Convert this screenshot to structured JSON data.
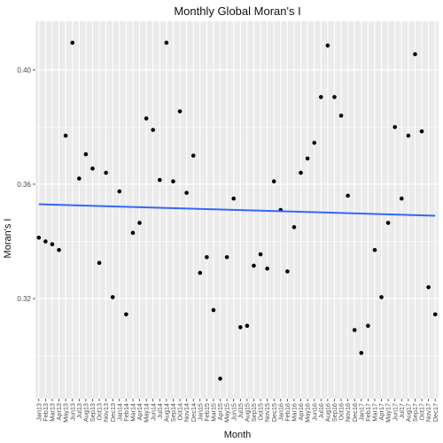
{
  "chart_data": {
    "type": "scatter",
    "title": "Monthly Global Moran's I",
    "xlabel": "Month",
    "ylabel": "Moran's I",
    "categories": [
      "Jan13",
      "Feb13",
      "Mar13",
      "Apr13",
      "May13",
      "Jun13",
      "Jul13",
      "Aug13",
      "Sep13",
      "Oct13",
      "Nov13",
      "Dec13",
      "Jan14",
      "Feb14",
      "Mar14",
      "Apr14",
      "May14",
      "Jun14",
      "Jul14",
      "Aug14",
      "Sep14",
      "Oct14",
      "Nov14",
      "Dec14",
      "Jan15",
      "Feb15",
      "Mar15",
      "Apr15",
      "May15",
      "Jun15",
      "Jul15",
      "Aug15",
      "Sep15",
      "Oct15",
      "Nov15",
      "Dec15",
      "Jan16",
      "Feb16",
      "Mar16",
      "Apr16",
      "May16",
      "Jun16",
      "Jul16",
      "Aug16",
      "Sep16",
      "Oct16",
      "Nov16",
      "Dec16",
      "Jan17",
      "Feb17",
      "Mar17",
      "Apr17",
      "May17",
      "Jun17",
      "Jul17",
      "Aug17",
      "Sep17",
      "Oct17",
      "Nov17",
      "Dec17"
    ],
    "values": [
      0.3413,
      0.34,
      0.339,
      0.337,
      0.377,
      0.4095,
      0.362,
      0.3705,
      0.3655,
      0.3325,
      0.364,
      0.3205,
      0.3575,
      0.3145,
      0.343,
      0.3465,
      0.383,
      0.379,
      0.3615,
      0.4095,
      0.361,
      0.3855,
      0.357,
      0.37,
      0.329,
      0.3345,
      0.316,
      0.292,
      0.3345,
      0.355,
      0.31,
      0.3105,
      0.3315,
      0.3355,
      0.3305,
      0.361,
      0.351,
      0.3295,
      0.345,
      0.364,
      0.369,
      0.3745,
      0.3905,
      0.4085,
      0.3905,
      0.384,
      0.356,
      0.309,
      0.301,
      0.3105,
      0.337,
      0.3205,
      0.3465,
      0.38,
      0.355,
      0.377,
      0.4055,
      0.3785,
      0.324,
      0.3145
    ],
    "trend_line": {
      "start": 0.353,
      "end": 0.349,
      "color": "#3366ff"
    },
    "y_ticks": [
      "0.32",
      "0.36",
      "0.40"
    ],
    "ylim": [
      0.285,
      0.417
    ],
    "grid": true,
    "panel_background": "#ebebeb",
    "grid_color": "#ffffff",
    "point_color": "#000000"
  }
}
